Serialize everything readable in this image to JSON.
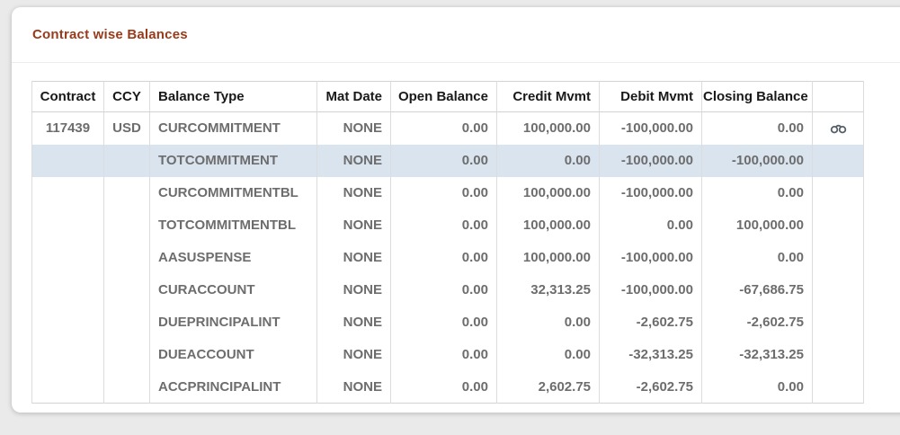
{
  "panel": {
    "title": "Contract wise Balances"
  },
  "colors": {
    "accent": "#993b1a",
    "page_bg": "#eaeaea",
    "card_bg": "#ffffff",
    "header_text": "#191919",
    "data_text": "#6d6d6d",
    "row_highlight": "#dae4ee",
    "icon_color": "#55606b"
  },
  "table": {
    "columns": [
      {
        "key": "contract",
        "label": "Contract",
        "align": "center"
      },
      {
        "key": "ccy",
        "label": "CCY",
        "align": "center"
      },
      {
        "key": "balance_type",
        "label": "Balance Type",
        "align": "left"
      },
      {
        "key": "mat_date",
        "label": "Mat Date",
        "align": "right"
      },
      {
        "key": "open_balance",
        "label": "Open Balance",
        "align": "right"
      },
      {
        "key": "credit_mvmt",
        "label": "Credit Mvmt",
        "align": "right"
      },
      {
        "key": "debit_mvmt",
        "label": "Debit Mvmt",
        "align": "right"
      },
      {
        "key": "closing_balance",
        "label": "Closing Balance",
        "align": "right"
      },
      {
        "key": "actions",
        "label": "",
        "align": "center"
      }
    ],
    "rows": [
      {
        "contract": "117439",
        "ccy": "USD",
        "balance_type": "CURCOMMITMENT",
        "mat_date": "NONE",
        "open_balance": "0.00",
        "credit_mvmt": "100,000.00",
        "debit_mvmt": "-100,000.00",
        "closing_balance": "0.00",
        "action_icon": "binoculars-view-icon",
        "highlighted": false
      },
      {
        "contract": "",
        "ccy": "",
        "balance_type": "TOTCOMMITMENT",
        "mat_date": "NONE",
        "open_balance": "0.00",
        "credit_mvmt": "0.00",
        "debit_mvmt": "-100,000.00",
        "closing_balance": "-100,000.00",
        "action_icon": "",
        "highlighted": true
      },
      {
        "contract": "",
        "ccy": "",
        "balance_type": "CURCOMMITMENTBL",
        "mat_date": "NONE",
        "open_balance": "0.00",
        "credit_mvmt": "100,000.00",
        "debit_mvmt": "-100,000.00",
        "closing_balance": "0.00",
        "action_icon": "",
        "highlighted": false
      },
      {
        "contract": "",
        "ccy": "",
        "balance_type": "TOTCOMMITMENTBL",
        "mat_date": "NONE",
        "open_balance": "0.00",
        "credit_mvmt": "100,000.00",
        "debit_mvmt": "0.00",
        "closing_balance": "100,000.00",
        "action_icon": "",
        "highlighted": false
      },
      {
        "contract": "",
        "ccy": "",
        "balance_type": "AASUSPENSE",
        "mat_date": "NONE",
        "open_balance": "0.00",
        "credit_mvmt": "100,000.00",
        "debit_mvmt": "-100,000.00",
        "closing_balance": "0.00",
        "action_icon": "",
        "highlighted": false
      },
      {
        "contract": "",
        "ccy": "",
        "balance_type": "CURACCOUNT",
        "mat_date": "NONE",
        "open_balance": "0.00",
        "credit_mvmt": "32,313.25",
        "debit_mvmt": "-100,000.00",
        "closing_balance": "-67,686.75",
        "action_icon": "",
        "highlighted": false
      },
      {
        "contract": "",
        "ccy": "",
        "balance_type": "DUEPRINCIPALINT",
        "mat_date": "NONE",
        "open_balance": "0.00",
        "credit_mvmt": "0.00",
        "debit_mvmt": "-2,602.75",
        "closing_balance": "-2,602.75",
        "action_icon": "",
        "highlighted": false
      },
      {
        "contract": "",
        "ccy": "",
        "balance_type": "DUEACCOUNT",
        "mat_date": "NONE",
        "open_balance": "0.00",
        "credit_mvmt": "0.00",
        "debit_mvmt": "-32,313.25",
        "closing_balance": "-32,313.25",
        "action_icon": "",
        "highlighted": false
      },
      {
        "contract": "",
        "ccy": "",
        "balance_type": "ACCPRINCIPALINT",
        "mat_date": "NONE",
        "open_balance": "0.00",
        "credit_mvmt": "2,602.75",
        "debit_mvmt": "-2,602.75",
        "closing_balance": "0.00",
        "action_icon": "",
        "highlighted": false
      }
    ]
  }
}
